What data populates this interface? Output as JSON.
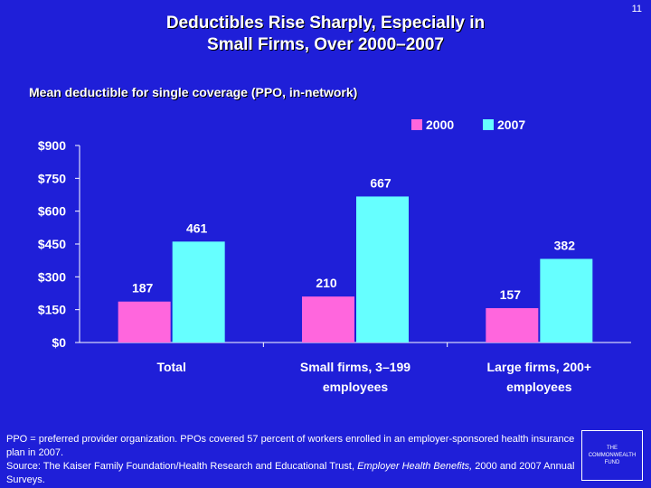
{
  "slide": {
    "title_line1": "Deductibles Rise Sharply, Especially in",
    "title_line2": "Small Firms, Over 2000–2007",
    "number": "11"
  },
  "colors": {
    "background": "#1f1fd8",
    "series_2000": "#ff66dd",
    "series_2007": "#66ffff",
    "text": "#ffffff"
  },
  "chart_data": {
    "type": "bar",
    "title": "Mean deductible for single coverage (PPO, in-network)",
    "xlabel": "",
    "ylabel": "",
    "categories": [
      [
        "Total"
      ],
      [
        "Small firms, 3–199",
        "employees"
      ],
      [
        "Large firms, 200+",
        "employees"
      ]
    ],
    "series": [
      {
        "name": "2000",
        "values": [
          187,
          210,
          157
        ]
      },
      {
        "name": "2007",
        "values": [
          461,
          667,
          382
        ]
      }
    ],
    "data_labels": [
      [
        "187",
        "210",
        "157"
      ],
      [
        "461",
        "667",
        "382"
      ]
    ],
    "ylim": [
      0,
      900
    ],
    "yticks": [
      0,
      150,
      300,
      450,
      600,
      750,
      900
    ],
    "ytick_labels": [
      "$0",
      "$150",
      "$300",
      "$450",
      "$600",
      "$750",
      "$900"
    ],
    "legend": "top-right",
    "grid": false
  },
  "footnote": {
    "line1": "PPO = preferred provider organization. PPOs covered 57 percent of workers enrolled in an employer-sponsored health insurance plan in 2007.",
    "source_prefix": "Source: The Kaiser Family Foundation/Health Research and Educational Trust, ",
    "source_title": "Employer Health Benefits,",
    "source_suffix": " 2000 and 2007 Annual Surveys."
  },
  "logo": {
    "line1": "THE",
    "line2": "COMMONWEALTH",
    "line3": "FUND"
  }
}
